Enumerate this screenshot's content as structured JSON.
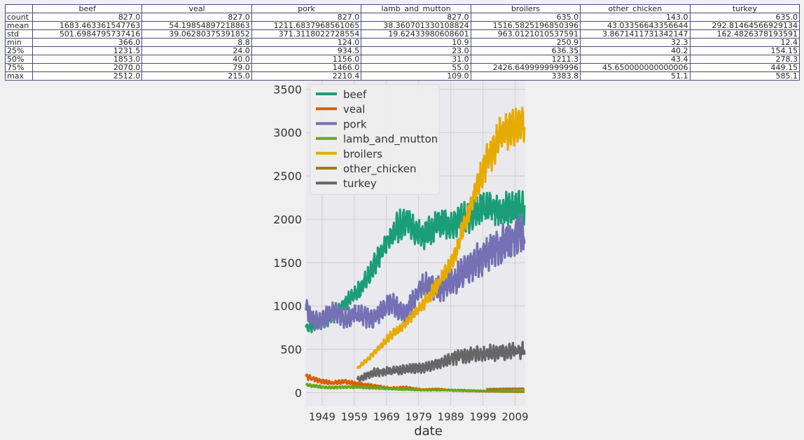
{
  "table": {
    "columns": [
      "beef",
      "veal",
      "pork",
      "lamb_and_mutton",
      "broilers",
      "other_chicken",
      "turkey"
    ],
    "rows": [
      {
        "stat": "count",
        "values": [
          "827.0",
          "827.0",
          "827.0",
          "827.0",
          "635.0",
          "143.0",
          "635.0"
        ]
      },
      {
        "stat": "mean",
        "values": [
          "1683.463361547763",
          "54.19854897218863",
          "1211.6837968561065",
          "38.360701330108824",
          "1516.5825196850396",
          "43.03356643356644",
          "292.81464566929134"
        ]
      },
      {
        "stat": "std",
        "values": [
          "501.6984795737416",
          "39.06280375391852",
          "371.3118022728554",
          "19.62433980608601",
          "963.0121010537591",
          "3.8671411731342147",
          "162.4826378193591"
        ]
      },
      {
        "stat": "min",
        "values": [
          "366.0",
          "8.8",
          "124.0",
          "10.9",
          "250.9",
          "32.3",
          "12.4"
        ]
      },
      {
        "stat": "25%",
        "values": [
          "1231.5",
          "24.0",
          "934.5",
          "23.0",
          "636.35",
          "40.2",
          "154.15"
        ]
      },
      {
        "stat": "50%",
        "values": [
          "1853.0",
          "40.0",
          "1156.0",
          "31.0",
          "1211.3",
          "43.4",
          "278.3"
        ]
      },
      {
        "stat": "75%",
        "values": [
          "2070.0",
          "79.0",
          "1466.0",
          "55.0",
          "2426.6499999999996",
          "45.650000000000006",
          "449.15"
        ]
      },
      {
        "stat": "max",
        "values": [
          "2512.0",
          "215.0",
          "2210.4",
          "109.0",
          "3383.8",
          "51.1",
          "585.1"
        ]
      }
    ]
  },
  "chart_data": {
    "type": "line",
    "xlabel": "date",
    "ylabel": "",
    "title": "",
    "xlim": [
      "1944-01-01",
      "2012-03-01"
    ],
    "ylim": [
      -150,
      3600
    ],
    "x_tick_labels": [
      "1949",
      "1959",
      "1969",
      "1979",
      "1989",
      "1999",
      "2009"
    ],
    "y_ticks": [
      0,
      500,
      1000,
      1500,
      2000,
      2500,
      3000,
      3500
    ],
    "grid": true,
    "legend_position": "top-left",
    "series": [
      {
        "name": "beef",
        "color": "#1b9e77",
        "x": [
          "1944-01-01",
          "1950-01-01",
          "1955-01-01",
          "1960-01-01",
          "1965-01-01",
          "1970-01-01",
          "1975-01-01",
          "1980-01-01",
          "1985-01-01",
          "1990-01-01",
          "1995-01-01",
          "2000-01-01",
          "2005-01-01",
          "2011-12-01"
        ],
        "values": [
          750,
          820,
          1000,
          1150,
          1450,
          1800,
          2000,
          1800,
          1950,
          1950,
          2050,
          2150,
          2100,
          2150
        ]
      },
      {
        "name": "veal",
        "color": "#d95f02",
        "x": [
          "1944-01-01",
          "1948-01-01",
          "1952-01-01",
          "1956-01-01",
          "1960-01-01",
          "1965-01-01",
          "1970-01-01",
          "1975-01-01",
          "1980-01-01",
          "1985-01-01",
          "1990-01-01",
          "1995-01-01",
          "2000-01-01",
          "2005-01-01",
          "2011-12-01"
        ],
        "values": [
          180,
          140,
          110,
          130,
          100,
          80,
          50,
          60,
          35,
          40,
          25,
          20,
          15,
          12,
          10
        ]
      },
      {
        "name": "pork",
        "color": "#7570b3",
        "x": [
          "1944-01-01",
          "1948-01-01",
          "1952-01-01",
          "1956-01-01",
          "1960-01-01",
          "1965-01-01",
          "1970-01-01",
          "1975-01-01",
          "1980-01-01",
          "1985-01-01",
          "1990-01-01",
          "1995-01-01",
          "2000-01-01",
          "2005-01-01",
          "2011-12-01"
        ],
        "values": [
          950,
          800,
          950,
          850,
          900,
          850,
          1050,
          900,
          1250,
          1200,
          1300,
          1450,
          1600,
          1700,
          1850
        ]
      },
      {
        "name": "lamb_and_mutton",
        "color": "#66a61e",
        "x": [
          "1944-01-01",
          "1950-01-01",
          "1960-01-01",
          "1970-01-01",
          "1980-01-01",
          "1990-01-01",
          "2000-01-01",
          "2011-12-01"
        ],
        "values": [
          90,
          60,
          65,
          45,
          30,
          30,
          20,
          14
        ]
      },
      {
        "name": "broilers",
        "color": "#e6ab02",
        "x": [
          "1960-01-01",
          "1965-01-01",
          "1970-01-01",
          "1975-01-01",
          "1980-01-01",
          "1985-01-01",
          "1990-01-01",
          "1995-01-01",
          "2000-01-01",
          "2005-01-01",
          "2011-12-01"
        ],
        "values": [
          280,
          450,
          650,
          800,
          1000,
          1250,
          1550,
          2150,
          2650,
          3000,
          3100
        ]
      },
      {
        "name": "other_chicken",
        "color": "#a6761d",
        "x": [
          "2000-01-01",
          "2004-01-01",
          "2008-01-01",
          "2011-12-01"
        ],
        "values": [
          40,
          43,
          45,
          46
        ]
      },
      {
        "name": "turkey",
        "color": "#666666",
        "x": [
          "1960-01-01",
          "1965-01-01",
          "1970-01-01",
          "1975-01-01",
          "1980-01-01",
          "1985-01-01",
          "1990-01-01",
          "1995-01-01",
          "2000-01-01",
          "2005-01-01",
          "2011-12-01"
        ],
        "values": [
          150,
          230,
          250,
          270,
          290,
          330,
          400,
          440,
          450,
          470,
          490
        ]
      }
    ]
  }
}
